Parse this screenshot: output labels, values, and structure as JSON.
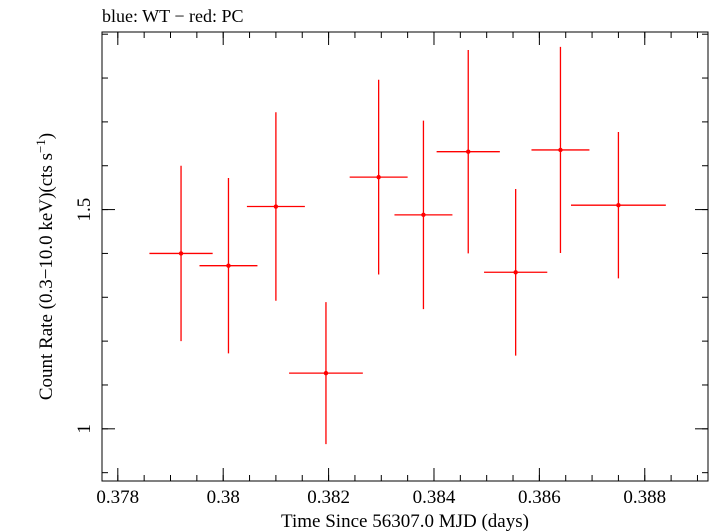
{
  "chart_data": {
    "type": "scatter",
    "title": "blue: WT − red: PC",
    "xlabel": "Time Since 56307.0 MJD (days)",
    "ylabel_main": "Count Rate (0.3−10.0 keV)(cts s",
    "ylabel_sup": "−1",
    "ylabel_end": ")",
    "xlim": [
      0.3777,
      0.3892
    ],
    "ylim": [
      0.881,
      1.905
    ],
    "xticks": [
      {
        "value": 0.378,
        "label": "0.378"
      },
      {
        "value": 0.38,
        "label": "0.38"
      },
      {
        "value": 0.382,
        "label": "0.382"
      },
      {
        "value": 0.384,
        "label": "0.384"
      },
      {
        "value": 0.386,
        "label": "0.386"
      },
      {
        "value": 0.388,
        "label": "0.388"
      }
    ],
    "xminor_step": 0.0005,
    "yticks": [
      {
        "value": 1.0,
        "label": "1"
      },
      {
        "value": 1.5,
        "label": "1.5"
      }
    ],
    "yminor_step": 0.1,
    "grid": false,
    "series": [
      {
        "color": "#ff0000",
        "points": [
          {
            "x": 0.3792,
            "xerr": 0.0006,
            "y": 1.4,
            "yerr_low": 0.2,
            "yerr_high": 0.2
          },
          {
            "x": 0.3801,
            "xerr": 0.00055,
            "y": 1.372,
            "yerr_low": 0.2,
            "yerr_high": 0.2
          },
          {
            "x": 0.381,
            "xerr": 0.00055,
            "y": 1.507,
            "yerr_low": 0.215,
            "yerr_high": 0.215
          },
          {
            "x": 0.38195,
            "xerr": 0.0007,
            "y": 1.127,
            "yerr_low": 0.162,
            "yerr_high": 0.162
          },
          {
            "x": 0.38295,
            "xerr": 0.00055,
            "y": 1.574,
            "yerr_low": 0.222,
            "yerr_high": 0.222
          },
          {
            "x": 0.3838,
            "xerr": 0.00055,
            "y": 1.488,
            "yerr_low": 0.215,
            "yerr_high": 0.215
          },
          {
            "x": 0.38465,
            "xerr": 0.0006,
            "y": 1.632,
            "yerr_low": 0.232,
            "yerr_high": 0.232
          },
          {
            "x": 0.38555,
            "xerr": 0.0006,
            "y": 1.357,
            "yerr_low": 0.19,
            "yerr_high": 0.19
          },
          {
            "x": 0.3864,
            "xerr": 0.00055,
            "y": 1.636,
            "yerr_low": 0.235,
            "yerr_high": 0.235
          },
          {
            "x": 0.3875,
            "xerr": 0.0009,
            "y": 1.51,
            "yerr_low": 0.167,
            "yerr_high": 0.167
          }
        ]
      }
    ]
  }
}
